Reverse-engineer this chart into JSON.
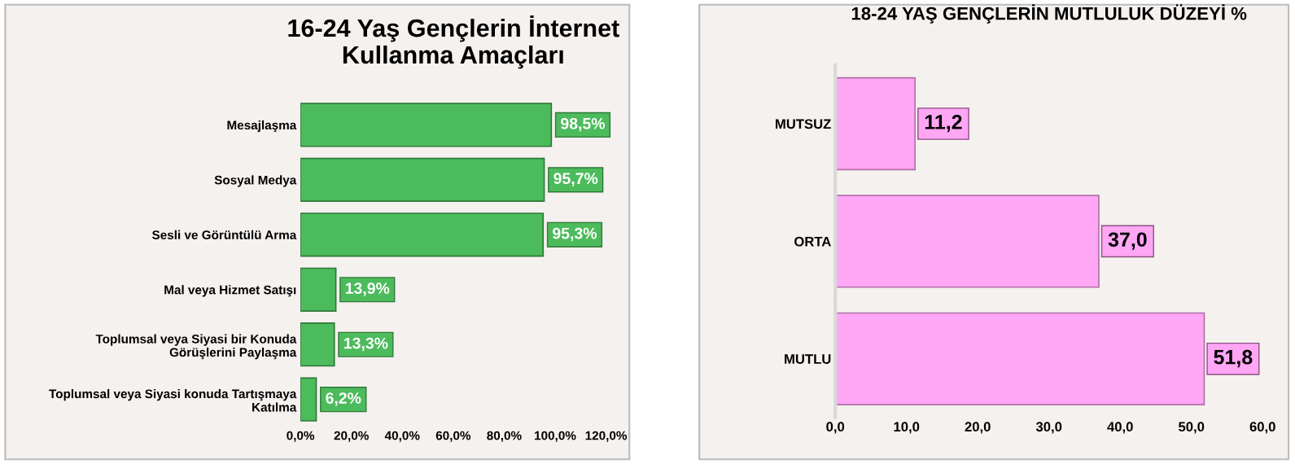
{
  "chart_data": [
    {
      "type": "bar",
      "orientation": "horizontal",
      "title": "16-24 Yaş Gençlerin İnternet\nKullanma Amaçları",
      "categories": [
        "Mesajlaşma",
        "Sosyal Medya",
        "Sesli ve Görüntülü Arma",
        "Mal veya Hizmet Satışı",
        "Toplumsal veya Siyasi bir Konuda\nGörüşlerini Paylaşma",
        "Toplumsal veya Siyasi konuda Tartışmaya\nKatılma"
      ],
      "values": [
        98.5,
        95.7,
        95.3,
        13.9,
        13.3,
        6.2
      ],
      "value_labels": [
        "98,5%",
        "95,7%",
        "95,3%",
        "13,9%",
        "13,3%",
        "6,2%"
      ],
      "color": "#4cbb5c",
      "xlim": [
        0,
        120
      ],
      "xticks": [
        {
          "value": 0,
          "label": "0,0%"
        },
        {
          "value": 20,
          "label": "20,0%"
        },
        {
          "value": 40,
          "label": "40,0%"
        },
        {
          "value": 60,
          "label": "60,0%"
        },
        {
          "value": 80,
          "label": "80,0%"
        },
        {
          "value": 100,
          "label": "100,0%"
        },
        {
          "value": 120,
          "label": "120,0%"
        }
      ],
      "grid": false,
      "legend": false
    },
    {
      "type": "bar",
      "orientation": "horizontal",
      "title": "18-24 YAŞ GENÇLERİN MUTLULUK DÜZEYİ %",
      "categories": [
        "MUTSUZ",
        "ORTA",
        "MUTLU"
      ],
      "values": [
        11.2,
        37.0,
        51.8
      ],
      "value_labels": [
        "11,2",
        "37,0",
        "51,8"
      ],
      "color": "#ffa6f5",
      "xlim": [
        0,
        60
      ],
      "xticks": [
        {
          "value": 0,
          "label": "0,0"
        },
        {
          "value": 10,
          "label": "10,0"
        },
        {
          "value": 20,
          "label": "20,0"
        },
        {
          "value": 30,
          "label": "30,0"
        },
        {
          "value": 40,
          "label": "40,0"
        },
        {
          "value": 50,
          "label": "50,0"
        },
        {
          "value": 60,
          "label": "60,0"
        }
      ],
      "grid": false,
      "legend": false
    }
  ]
}
